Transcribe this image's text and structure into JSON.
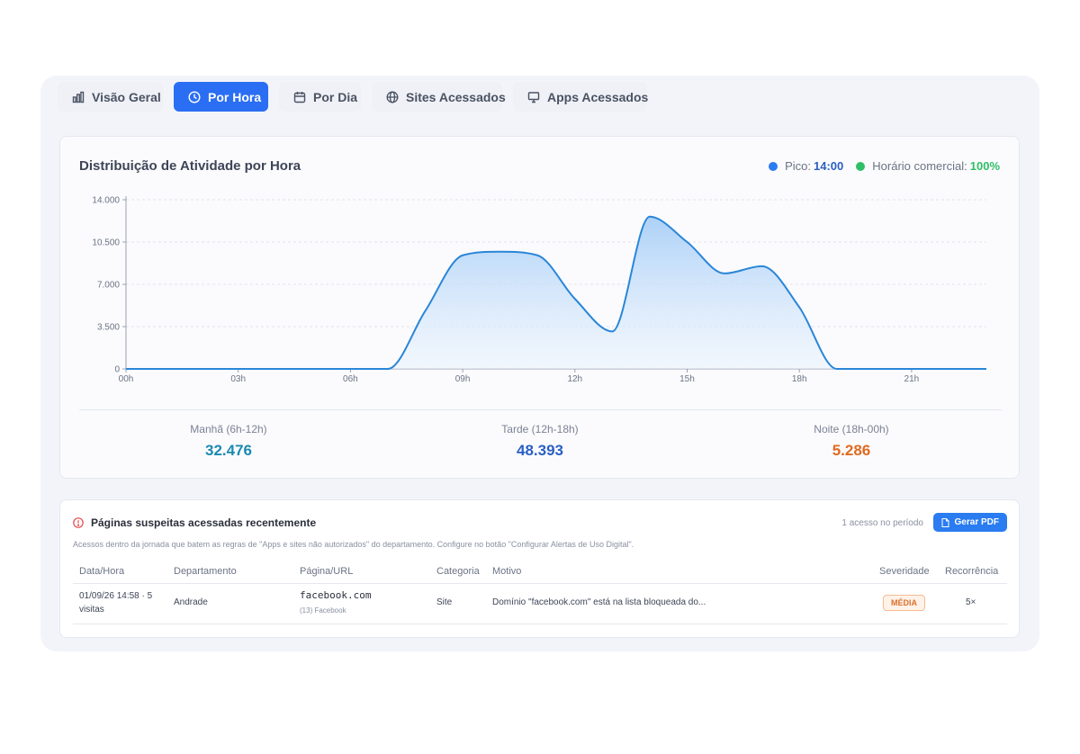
{
  "tabs": [
    {
      "label": "Visão Geral",
      "icon": "bar-chart-icon",
      "active": false
    },
    {
      "label": "Por Hora",
      "icon": "clock-icon",
      "active": true
    },
    {
      "label": "Por Dia",
      "icon": "calendar-icon",
      "active": false
    },
    {
      "label": "Sites Acessados",
      "icon": "globe-icon",
      "active": false
    },
    {
      "label": "Apps Acessados",
      "icon": "monitor-icon",
      "active": false
    }
  ],
  "activity": {
    "title": "Distribuição de Atividade por Hora",
    "legend": {
      "peak_label": "Pico:",
      "peak_value": "14:00",
      "business_label": "Horário comercial:",
      "business_value": "100%"
    },
    "stats": [
      {
        "label": "Manhã (6h-12h)",
        "value": "32.476",
        "color": "#1b8ab0"
      },
      {
        "label": "Tarde (12h-18h)",
        "value": "48.393",
        "color": "#2a5fc2"
      },
      {
        "label": "Noite (18h-00h)",
        "value": "5.286",
        "color": "#e06a1f"
      }
    ]
  },
  "chart_data": {
    "type": "area",
    "x": [
      0,
      1,
      2,
      3,
      4,
      5,
      6,
      7,
      8,
      9,
      10,
      11,
      12,
      13,
      14,
      15,
      16,
      17,
      18,
      19,
      20,
      21,
      22,
      23
    ],
    "values": [
      0,
      0,
      0,
      0,
      0,
      0,
      0,
      0,
      4800,
      9400,
      9700,
      9400,
      5800,
      3100,
      12600,
      10500,
      7900,
      8500,
      5100,
      0,
      0,
      0,
      0,
      0
    ],
    "ylim": [
      0,
      14000
    ],
    "y_ticks": [
      "0",
      "3.500",
      "7.000",
      "10.500",
      "14.000"
    ],
    "x_tick_positions": [
      0,
      3,
      6,
      9,
      12,
      15,
      18,
      21
    ],
    "x_tick_labels": [
      "00h",
      "03h",
      "06h",
      "09h",
      "12h",
      "15h",
      "18h",
      "21h"
    ],
    "grid": true,
    "color": "#2a86d8"
  },
  "alerts": {
    "title": "Páginas suspeitas acessadas recentemente",
    "period": "1 acesso no período",
    "pdf_button": "Gerar PDF",
    "description": "Acessos dentro da jornada que batem as regras de \"Apps e sites não autorizados\" do departamento. Configure no botão \"Configurar Alertas de Uso Digital\".",
    "columns": [
      "Data/Hora",
      "Departamento",
      "Página/URL",
      "Categoria",
      "Motivo",
      "Severidade",
      "Recorrência"
    ],
    "rows": [
      {
        "datetime_line1": "01/09/26 14:58 · 5",
        "datetime_line2": "visitas",
        "department": "Andrade",
        "url": "facebook.com",
        "url_sub": "(13) Facebook",
        "category": "Site",
        "reason": "Domínio \"facebook.com\" está na lista bloqueada do...",
        "severity": "MÉDIA",
        "recurrence": "5×"
      }
    ]
  }
}
